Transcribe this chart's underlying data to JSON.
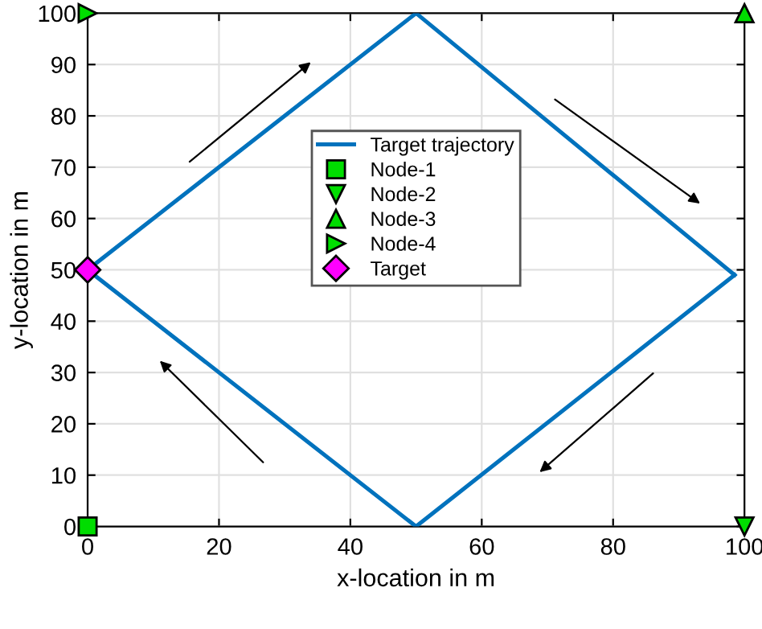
{
  "chart_data": {
    "type": "line",
    "xlabel": "x-location in m",
    "ylabel": "y-location in m",
    "xlim": [
      0,
      100
    ],
    "ylim": [
      0,
      100
    ],
    "xticks": [
      0,
      20,
      40,
      60,
      80,
      100
    ],
    "yticks": [
      0,
      10,
      20,
      30,
      40,
      50,
      60,
      70,
      80,
      90,
      100
    ],
    "grid": true,
    "legend": "center",
    "series": [
      {
        "name": "Target trajectory",
        "color": "#0072bd",
        "x": [
          0,
          50,
          98.5
        ],
        "values": [
          50,
          100,
          49
        ],
        "marker": "none",
        "line_style": "solid"
      },
      {
        "color": "#0072bd",
        "x": [
          0,
          50,
          98.5
        ],
        "values": [
          50,
          0,
          49
        ],
        "marker": "none",
        "line_style": "solid"
      },
      {
        "name": "Node-1",
        "type": "scatter",
        "color": "#00dd00",
        "x": [
          0
        ],
        "values": [
          0
        ],
        "marker": "square"
      },
      {
        "name": "Node-2",
        "type": "scatter",
        "color": "#00dd00",
        "x": [
          100
        ],
        "values": [
          0
        ],
        "marker": "triangle-down"
      },
      {
        "name": "Node-3",
        "type": "scatter",
        "color": "#00dd00",
        "x": [
          100
        ],
        "values": [
          100
        ],
        "marker": "triangle"
      },
      {
        "name": "Node-4",
        "type": "scatter",
        "color": "#00dd00",
        "x": [
          0
        ],
        "values": [
          100
        ],
        "marker": "triangle-right"
      },
      {
        "name": "Target",
        "type": "scatter",
        "color": "#ff00ff",
        "x": [
          0
        ],
        "values": [
          50
        ],
        "marker": "diamond"
      }
    ]
  }
}
